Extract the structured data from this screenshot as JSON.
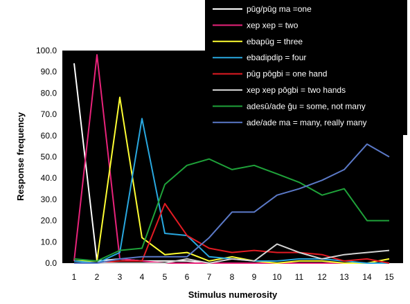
{
  "chart_data": {
    "type": "line",
    "xlabel": "Stimulus numerosity",
    "ylabel": "Response frequency",
    "x": [
      1,
      2,
      3,
      4,
      5,
      6,
      7,
      8,
      9,
      10,
      11,
      12,
      13,
      14,
      15
    ],
    "xlim": [
      1,
      15
    ],
    "ylim": [
      0,
      100
    ],
    "yticks": [
      "0.0",
      "10.0",
      "20.0",
      "30.0",
      "40.0",
      "50.0",
      "60.0",
      "70.0",
      "80.0",
      "90.0",
      "100.0"
    ],
    "background": "#000000",
    "legend_position": "top-right",
    "series": [
      {
        "name": "pūg/pūg ma =one",
        "color": "#ffffff",
        "values": [
          94,
          1,
          2,
          1,
          1,
          1,
          0,
          0,
          0,
          0,
          0,
          0,
          0,
          0,
          0
        ]
      },
      {
        "name": "xep xep = two",
        "color": "#e8237a",
        "values": [
          1,
          98,
          2,
          1,
          0,
          0,
          0,
          0,
          0,
          0,
          0,
          0,
          0,
          0,
          0
        ]
      },
      {
        "name": "ebapūg = three",
        "color": "#ffff33",
        "values": [
          1,
          1,
          78,
          12,
          4,
          5,
          1,
          3,
          1,
          0,
          1,
          1,
          0,
          0,
          2
        ]
      },
      {
        "name": "ebadipdip = four",
        "color": "#29a8e0",
        "values": [
          1,
          0,
          5,
          68,
          14,
          13,
          3,
          2,
          1,
          1,
          2,
          2,
          1,
          0,
          0
        ]
      },
      {
        "name": "pūg pōgbi = one hand",
        "color": "#e31b23",
        "values": [
          0,
          0,
          1,
          1,
          28,
          13,
          7,
          5,
          6,
          5,
          5,
          4,
          1,
          2,
          0
        ]
      },
      {
        "name": "xep xep pōgbi = two hands",
        "color": "#d4d4d4",
        "values": [
          0,
          0,
          0,
          0,
          0,
          2,
          0,
          2,
          1,
          9,
          5,
          2,
          4,
          5,
          6
        ]
      },
      {
        "name": "adesū/ade ḡu = some, not many",
        "color": "#1fa33a",
        "values": [
          2,
          1,
          6,
          7,
          37,
          46,
          49,
          44,
          46,
          42,
          38,
          32,
          35,
          20,
          20
        ]
      },
      {
        "name": "ade/ade ma = many, really many",
        "color": "#5b79c7",
        "values": [
          0,
          0,
          2,
          3,
          3,
          3,
          12,
          24,
          24,
          32,
          35,
          39,
          44,
          56,
          50
        ]
      }
    ]
  }
}
